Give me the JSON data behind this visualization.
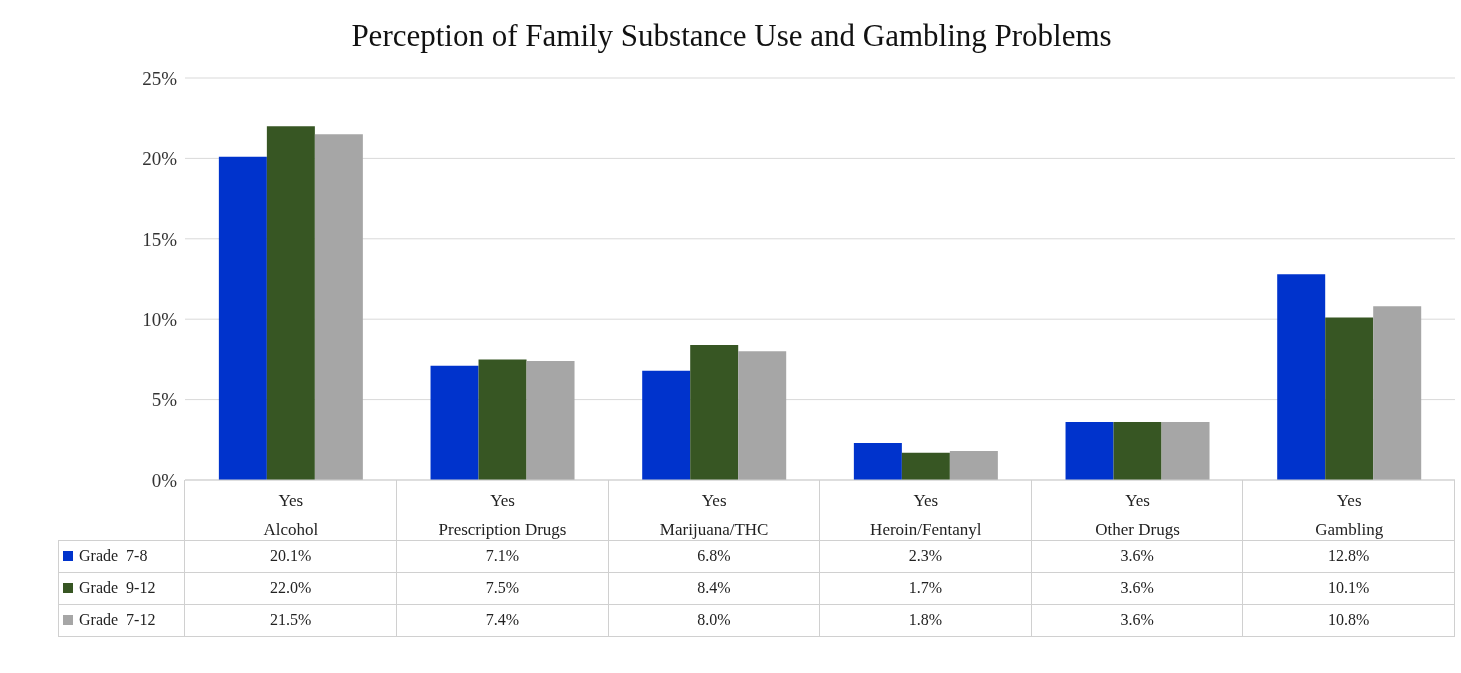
{
  "chart_data": {
    "type": "bar",
    "title": "Perception of Family Substance Use and Gambling Problems",
    "categories": [
      "Yes\nAlcohol",
      "Yes\nPrescription Drugs",
      "Yes\nMarijuana/THC",
      "Yes\nHeroin/Fentanyl",
      "Yes\nOther Drugs",
      "Yes\nGambling"
    ],
    "series": [
      {
        "name": "Grade  7-8",
        "color": "#0033cc",
        "values": [
          20.1,
          7.1,
          6.8,
          2.3,
          3.6,
          12.8
        ],
        "value_labels": [
          "20.1%",
          "7.1%",
          "6.8%",
          "2.3%",
          "3.6%",
          "12.8%"
        ]
      },
      {
        "name": "Grade  9-12",
        "color": "#375623",
        "values": [
          22.0,
          7.5,
          8.4,
          1.7,
          3.6,
          10.1
        ],
        "value_labels": [
          "22.0%",
          "7.5%",
          "8.4%",
          "1.7%",
          "3.6%",
          "10.1%"
        ]
      },
      {
        "name": "Grade  7-12",
        "color": "#a6a6a6",
        "values": [
          21.5,
          7.4,
          8.0,
          1.8,
          3.6,
          10.8
        ],
        "value_labels": [
          "21.5%",
          "7.4%",
          "8.0%",
          "1.8%",
          "3.6%",
          "10.8%"
        ]
      }
    ],
    "ylim": [
      0,
      25
    ],
    "yticks": [
      {
        "value": 0,
        "label": "0%"
      },
      {
        "value": 5,
        "label": "5%"
      },
      {
        "value": 10,
        "label": "10%"
      },
      {
        "value": 15,
        "label": "15%"
      },
      {
        "value": 20,
        "label": "20%"
      },
      {
        "value": 25,
        "label": "25%"
      }
    ],
    "grid": "y",
    "legend": "bottom left"
  }
}
